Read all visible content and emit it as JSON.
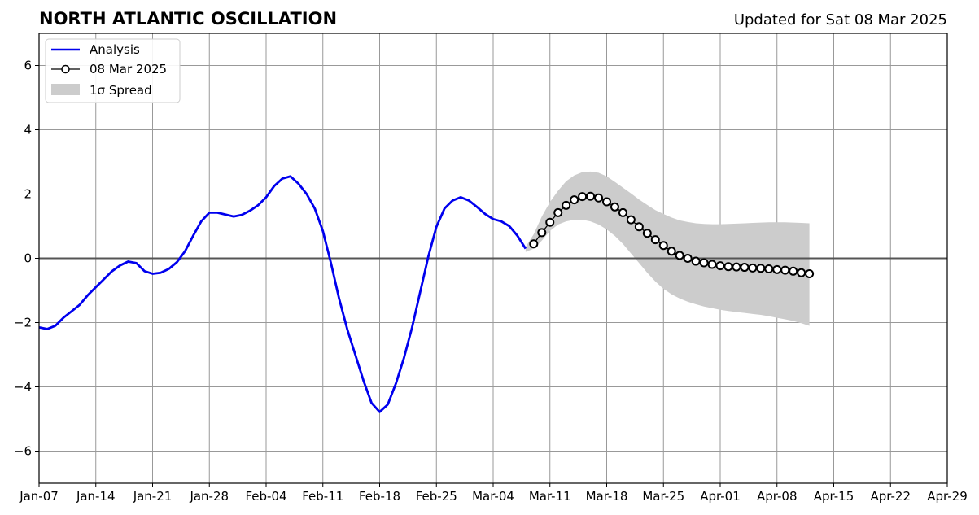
{
  "chart_data": {
    "type": "line",
    "title": "NORTH ATLANTIC OSCILLATION",
    "subtitle": "Updated for Sat 08 Mar 2025",
    "xlabel": "",
    "ylabel": "",
    "xlim": [
      "2025-01-07",
      "2025-04-29"
    ],
    "ylim": [
      -7,
      7
    ],
    "grid": true,
    "legend_position": "top-left",
    "x_ticks": [
      "Jan-07",
      "Jan-14",
      "Jan-21",
      "Jan-28",
      "Feb-04",
      "Feb-11",
      "Feb-18",
      "Feb-25",
      "Mar-04",
      "Mar-11",
      "Mar-18",
      "Mar-25",
      "Apr-01",
      "Apr-08",
      "Apr-15",
      "Apr-22",
      "Apr-29"
    ],
    "y_ticks": [
      -6,
      -4,
      -2,
      0,
      2,
      4,
      6
    ],
    "y_tick_labels": [
      "−6",
      "−4",
      "−2",
      "0",
      "2",
      "4",
      "6"
    ],
    "series": [
      {
        "name": "Analysis",
        "color": "#0000ee",
        "style": "line",
        "x": [
          "2025-01-07",
          "2025-01-08",
          "2025-01-09",
          "2025-01-10",
          "2025-01-11",
          "2025-01-12",
          "2025-01-13",
          "2025-01-14",
          "2025-01-15",
          "2025-01-16",
          "2025-01-17",
          "2025-01-18",
          "2025-01-19",
          "2025-01-20",
          "2025-01-21",
          "2025-01-22",
          "2025-01-23",
          "2025-01-24",
          "2025-01-25",
          "2025-01-26",
          "2025-01-27",
          "2025-01-28",
          "2025-01-29",
          "2025-01-30",
          "2025-01-31",
          "2025-02-01",
          "2025-02-02",
          "2025-02-03",
          "2025-02-04",
          "2025-02-05",
          "2025-02-06",
          "2025-02-07",
          "2025-02-08",
          "2025-02-09",
          "2025-02-10",
          "2025-02-11",
          "2025-02-12",
          "2025-02-13",
          "2025-02-14",
          "2025-02-15",
          "2025-02-16",
          "2025-02-17",
          "2025-02-18",
          "2025-02-19",
          "2025-02-20",
          "2025-02-21",
          "2025-02-22",
          "2025-02-23",
          "2025-02-24",
          "2025-02-25",
          "2025-02-26",
          "2025-02-27",
          "2025-02-28",
          "2025-03-01",
          "2025-03-02",
          "2025-03-03",
          "2025-03-04",
          "2025-03-05",
          "2025-03-06",
          "2025-03-07",
          "2025-03-08"
        ],
        "values": [
          -2.15,
          -2.2,
          -2.1,
          -1.85,
          -1.65,
          -1.45,
          -1.15,
          -0.9,
          -0.65,
          -0.4,
          -0.22,
          -0.1,
          -0.15,
          -0.4,
          -0.48,
          -0.45,
          -0.33,
          -0.12,
          0.22,
          0.7,
          1.15,
          1.42,
          1.42,
          1.36,
          1.3,
          1.35,
          1.48,
          1.65,
          1.9,
          2.25,
          2.48,
          2.55,
          2.32,
          2.0,
          1.55,
          0.85,
          -0.15,
          -1.25,
          -2.2,
          -3.0,
          -3.8,
          -4.5,
          -4.78,
          -4.55,
          -3.9,
          -3.1,
          -2.15,
          -1.05,
          0.05,
          0.98,
          1.55,
          1.8,
          1.9,
          1.8,
          1.6,
          1.38,
          1.22,
          1.15,
          1.0,
          0.7,
          0.3
        ]
      },
      {
        "name": "08 Mar 2025",
        "color": "#000000",
        "style": "line-marker",
        "x": [
          "2025-03-09",
          "2025-03-10",
          "2025-03-11",
          "2025-03-12",
          "2025-03-13",
          "2025-03-14",
          "2025-03-15",
          "2025-03-16",
          "2025-03-17",
          "2025-03-18",
          "2025-03-19",
          "2025-03-20",
          "2025-03-21",
          "2025-03-22",
          "2025-03-23",
          "2025-03-24",
          "2025-03-25",
          "2025-03-26",
          "2025-03-27",
          "2025-03-28",
          "2025-03-29",
          "2025-03-30",
          "2025-03-31",
          "2025-04-01",
          "2025-04-02",
          "2025-04-03",
          "2025-04-04",
          "2025-04-05",
          "2025-04-06",
          "2025-04-07",
          "2025-04-08",
          "2025-04-09",
          "2025-04-10",
          "2025-04-11",
          "2025-04-12"
        ],
        "values": [
          0.45,
          0.8,
          1.12,
          1.42,
          1.65,
          1.82,
          1.92,
          1.93,
          1.88,
          1.76,
          1.6,
          1.42,
          1.2,
          0.98,
          0.78,
          0.58,
          0.4,
          0.22,
          0.09,
          0.0,
          -0.09,
          -0.14,
          -0.19,
          -0.23,
          -0.26,
          -0.27,
          -0.28,
          -0.3,
          -0.31,
          -0.33,
          -0.35,
          -0.37,
          -0.4,
          -0.45,
          -0.48
        ]
      }
    ],
    "spread": {
      "name": "1σ Spread",
      "color": "#cccccc",
      "x": [
        "2025-03-08",
        "2025-03-09",
        "2025-03-10",
        "2025-03-11",
        "2025-03-12",
        "2025-03-13",
        "2025-03-14",
        "2025-03-15",
        "2025-03-16",
        "2025-03-17",
        "2025-03-18",
        "2025-03-19",
        "2025-03-20",
        "2025-03-21",
        "2025-03-22",
        "2025-03-23",
        "2025-03-24",
        "2025-03-25",
        "2025-03-26",
        "2025-03-27",
        "2025-03-28",
        "2025-03-29",
        "2025-03-30",
        "2025-03-31",
        "2025-04-01",
        "2025-04-02",
        "2025-04-03",
        "2025-04-04",
        "2025-04-05",
        "2025-04-06",
        "2025-04-07",
        "2025-04-08",
        "2025-04-09",
        "2025-04-10",
        "2025-04-11",
        "2025-04-12"
      ],
      "upper": [
        0.35,
        0.75,
        1.3,
        1.75,
        2.1,
        2.4,
        2.58,
        2.68,
        2.7,
        2.66,
        2.55,
        2.38,
        2.2,
        2.02,
        1.83,
        1.66,
        1.5,
        1.38,
        1.27,
        1.18,
        1.13,
        1.09,
        1.07,
        1.06,
        1.06,
        1.07,
        1.08,
        1.09,
        1.1,
        1.11,
        1.12,
        1.12,
        1.12,
        1.11,
        1.1,
        1.09
      ],
      "lower": [
        0.2,
        0.3,
        0.55,
        0.85,
        1.05,
        1.15,
        1.2,
        1.2,
        1.15,
        1.05,
        0.9,
        0.7,
        0.45,
        0.15,
        -0.15,
        -0.45,
        -0.72,
        -0.95,
        -1.12,
        -1.25,
        -1.35,
        -1.43,
        -1.5,
        -1.55,
        -1.6,
        -1.64,
        -1.67,
        -1.7,
        -1.73,
        -1.76,
        -1.8,
        -1.85,
        -1.9,
        -1.95,
        -2.02,
        -2.1
      ]
    },
    "legend": [
      {
        "label": "Analysis",
        "kind": "line",
        "color": "#0000ee"
      },
      {
        "label": "08 Mar 2025",
        "kind": "line-marker",
        "color": "#000000"
      },
      {
        "label": "1σ Spread",
        "kind": "patch",
        "color": "#cccccc"
      }
    ],
    "zero_line": {
      "value": 0,
      "color": "#555555"
    }
  }
}
